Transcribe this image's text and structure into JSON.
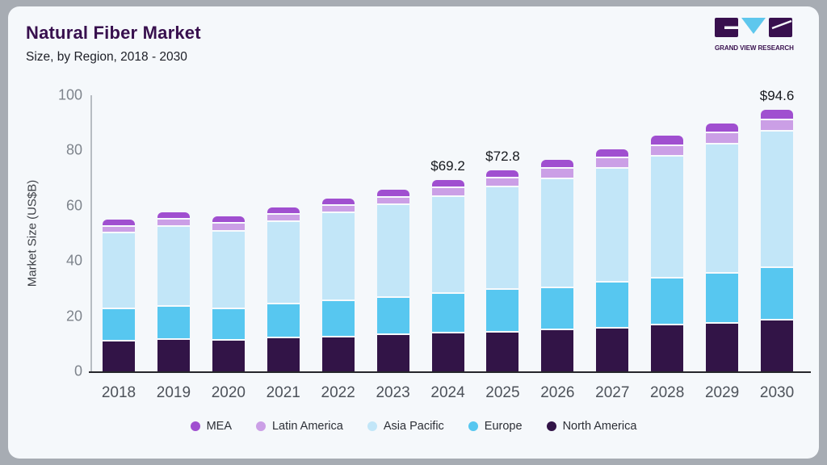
{
  "header": {
    "title": "Natural Fiber Market",
    "subtitle": "Size, by Region, 2018 - 2030"
  },
  "logo": {
    "text": "GRAND VIEW RESEARCH",
    "brand_dark": "#38104e",
    "brand_blue": "#5ec7ed"
  },
  "chart_data": {
    "type": "bar",
    "stacked": true,
    "title": "Natural Fiber Market Size, by Region, 2018 - 2030",
    "xlabel": "",
    "ylabel": "Market Size (US$B)",
    "ylim": [
      0,
      100
    ],
    "yticks": [
      0,
      20,
      40,
      60,
      80,
      100
    ],
    "grid": false,
    "legend_position": "bottom",
    "categories": [
      "2018",
      "2019",
      "2020",
      "2021",
      "2022",
      "2023",
      "2024",
      "2025",
      "2026",
      "2027",
      "2028",
      "2029",
      "2030"
    ],
    "series": [
      {
        "name": "North America",
        "color": "#321447",
        "values": [
          10.9,
          11.5,
          11.2,
          11.9,
          12.4,
          13.0,
          13.6,
          14.1,
          14.9,
          15.6,
          16.6,
          17.3,
          18.3
        ]
      },
      {
        "name": "Europe",
        "color": "#57c7f0",
        "values": [
          11.5,
          11.9,
          11.4,
          12.3,
          13.1,
          13.5,
          14.4,
          15.3,
          15.3,
          16.6,
          17.0,
          18.1,
          19.2
        ]
      },
      {
        "name": "Asia Pacific",
        "color": "#c2e6f8",
        "values": [
          27.6,
          29.0,
          28.1,
          29.9,
          31.7,
          33.6,
          35.2,
          37.4,
          39.3,
          41.2,
          44.1,
          46.8,
          49.2
        ]
      },
      {
        "name": "Latin America",
        "color": "#cb9fe6",
        "values": [
          2.4,
          2.7,
          2.7,
          2.6,
          2.7,
          2.8,
          3.3,
          3.2,
          3.8,
          3.8,
          4.0,
          4.1,
          4.2
        ]
      },
      {
        "name": "MEA",
        "color": "#a04fd0",
        "values": [
          2.7,
          2.6,
          2.6,
          2.7,
          2.7,
          2.9,
          2.7,
          2.8,
          3.2,
          3.2,
          3.6,
          3.6,
          3.7
        ]
      }
    ],
    "totals_labels": [
      {
        "category": "2024",
        "text": "$69.2"
      },
      {
        "category": "2025",
        "text": "$72.8"
      },
      {
        "category": "2030",
        "text": "$94.6"
      }
    ],
    "legend": [
      "MEA",
      "Latin America",
      "Asia Pacific",
      "Europe",
      "North America"
    ]
  }
}
